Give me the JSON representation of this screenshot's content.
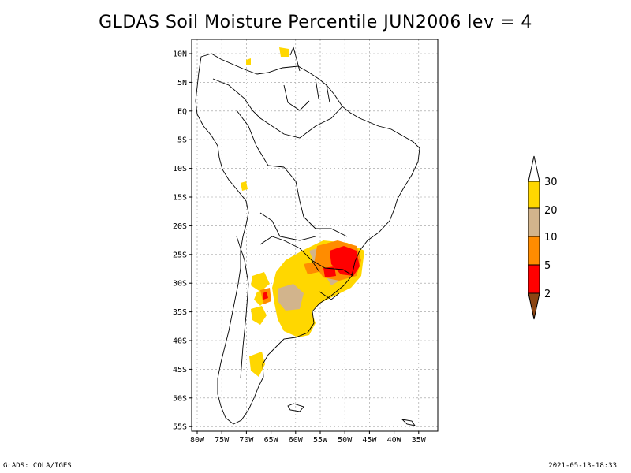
{
  "title": "GLDAS Soil Moisture Percentile JUN2006 lev = 4",
  "footer": {
    "left": "GrADS: COLA/IGES",
    "right": "2021-05-13-18:33"
  },
  "axes": {
    "lat_labels": [
      "10N",
      "5N",
      "EQ",
      "5S",
      "10S",
      "15S",
      "20S",
      "25S",
      "30S",
      "35S",
      "40S",
      "45S",
      "50S",
      "55S"
    ],
    "lon_labels": [
      "80W",
      "75W",
      "70W",
      "65W",
      "60W",
      "55W",
      "50W",
      "45W",
      "40W",
      "35W"
    ]
  },
  "colorbar": {
    "labels": [
      "2",
      "5",
      "10",
      "20",
      "30"
    ],
    "colors": {
      "below_2": "#8B4513",
      "2_5": "#FF0000",
      "5_10": "#FF8C00",
      "10_20": "#D2B48C",
      "20_30": "#FFD700",
      "above_30": "#FFFFFF"
    }
  },
  "map_style": {
    "grid_color": "#999999",
    "coast_color": "#000000"
  }
}
